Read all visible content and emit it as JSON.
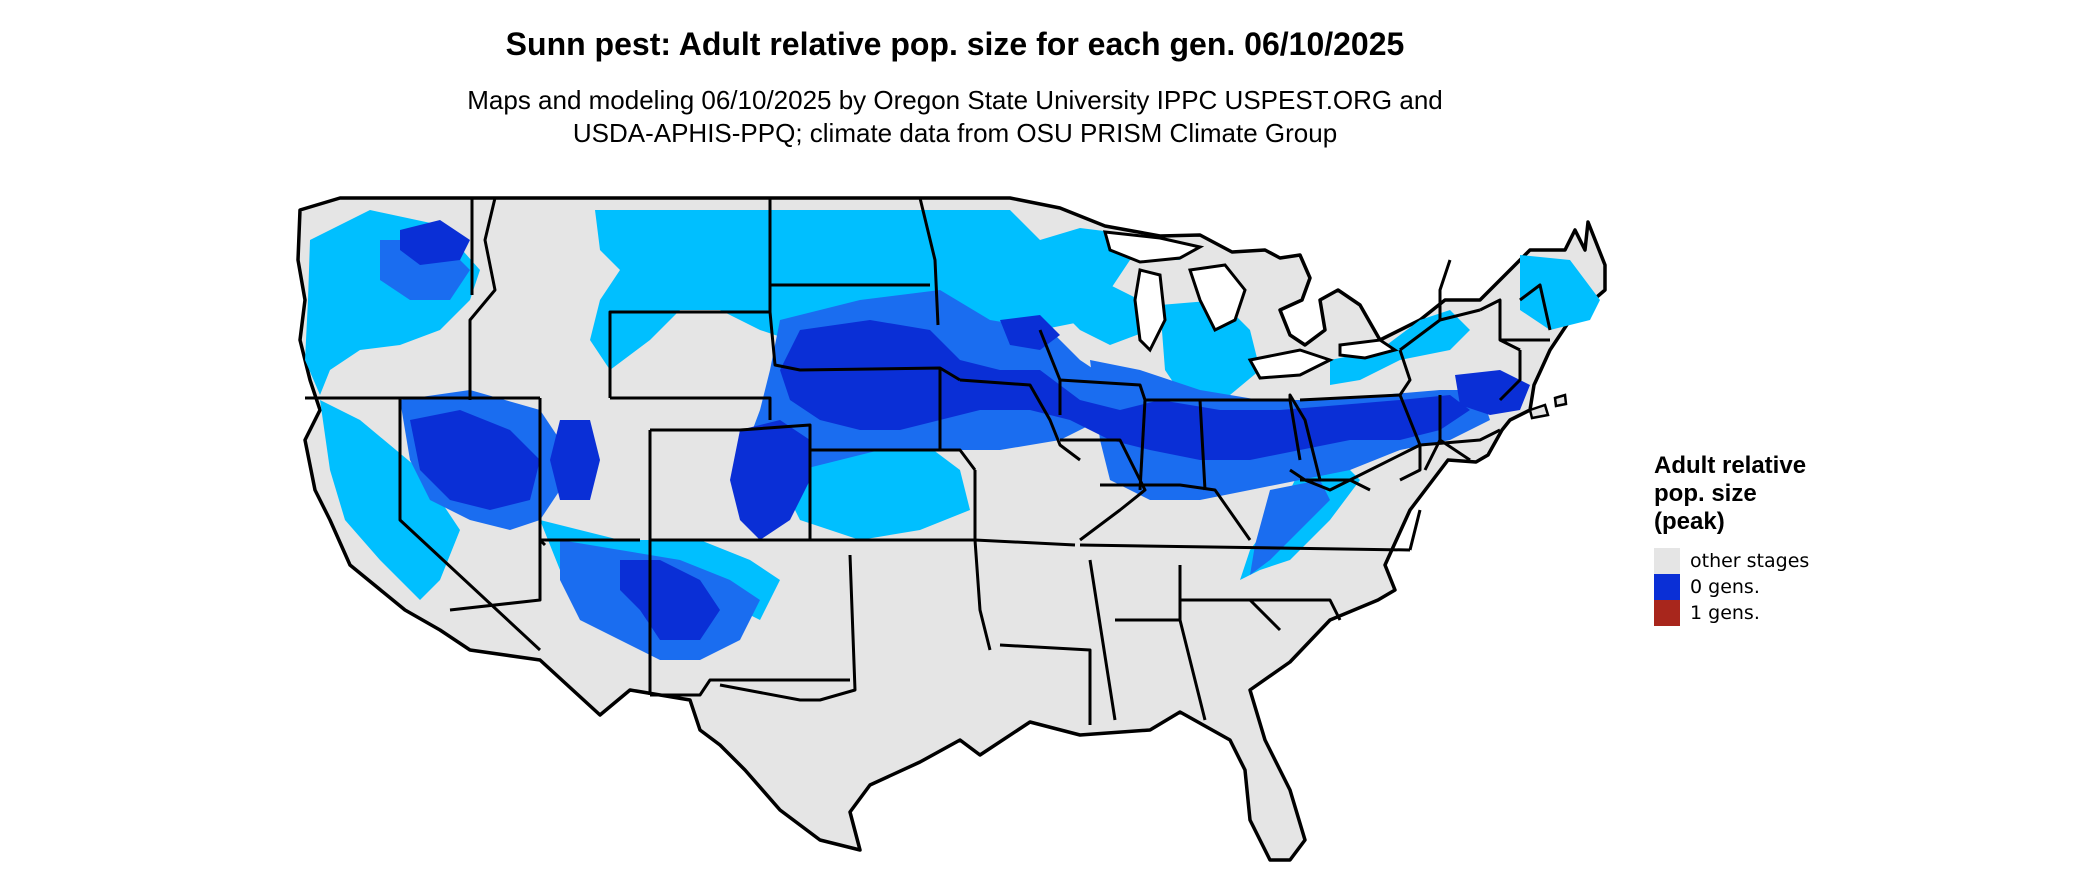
{
  "title": "Sunn pest: Adult relative pop. size for each gen. 06/10/2025",
  "subtitle_line1": "Maps and modeling 06/10/2025 by Oregon State University IPPC USPEST.ORG and",
  "subtitle_line2": "USDA-APHIS-PPQ; climate data from OSU PRISM Climate Group",
  "legend": {
    "title_lines": [
      "Adult relative",
      "pop. size",
      "(peak)"
    ],
    "items": [
      {
        "label": "other stages",
        "color": "#e5e5e5"
      },
      {
        "label": "0 gens.",
        "color": "#0a2fd6"
      },
      {
        "label": "1 gens.",
        "color": "#a8261c"
      }
    ]
  },
  "colors": {
    "background_land": "#e5e5e5",
    "light_blue": "#00bfff",
    "medium_blue": "#1a6df0",
    "dark_blue": "#0a2fd6",
    "state_border": "#000000"
  }
}
